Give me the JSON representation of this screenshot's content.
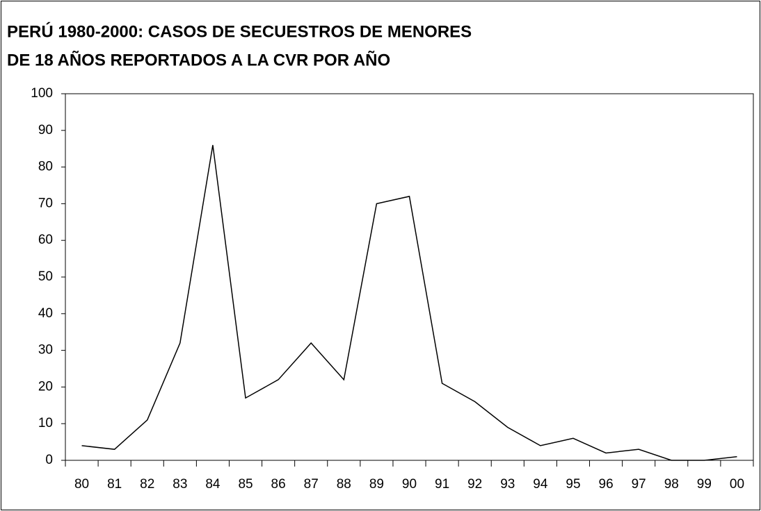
{
  "chart_data": {
    "type": "line",
    "title": [
      "PERÚ 1980-2000: CASOS DE SECUESTROS DE MENORES",
      "DE 18 AÑOS REPORTADOS A LA CVR POR AÑO"
    ],
    "categories": [
      "80",
      "81",
      "82",
      "83",
      "84",
      "85",
      "86",
      "87",
      "88",
      "89",
      "90",
      "91",
      "92",
      "93",
      "94",
      "95",
      "96",
      "97",
      "98",
      "99",
      "00"
    ],
    "series": [
      {
        "name": "Casos",
        "color": "#000000",
        "values": [
          4,
          3,
          11,
          32,
          86,
          17,
          22,
          32,
          22,
          70,
          72,
          21,
          16,
          9,
          4,
          6,
          2,
          3,
          0,
          0,
          1
        ]
      }
    ],
    "ylim": [
      0,
      100
    ],
    "yticks": [
      0,
      10,
      20,
      30,
      40,
      50,
      60,
      70,
      80,
      90,
      100
    ],
    "grid": false
  }
}
